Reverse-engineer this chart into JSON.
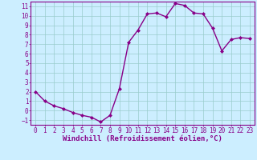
{
  "x": [
    0,
    1,
    2,
    3,
    4,
    5,
    6,
    7,
    8,
    9,
    10,
    11,
    12,
    13,
    14,
    15,
    16,
    17,
    18,
    19,
    20,
    21,
    22,
    23
  ],
  "y": [
    2,
    1,
    0.5,
    0.2,
    -0.2,
    -0.5,
    -0.7,
    -1.2,
    -0.5,
    2.3,
    7.2,
    8.5,
    10.2,
    10.3,
    9.9,
    11.3,
    11.1,
    10.3,
    10.2,
    8.7,
    6.3,
    7.5,
    7.7,
    7.6
  ],
  "line_color": "#880088",
  "marker": "D",
  "marker_size": 2,
  "bg_color": "#cceeff",
  "grid_color": "#99cccc",
  "xlabel": "Windchill (Refroidissement éolien,°C)",
  "xlabel_color": "#880088",
  "xlim": [
    -0.5,
    23.5
  ],
  "ylim": [
    -1.5,
    11.5
  ],
  "yticks": [
    -1,
    0,
    1,
    2,
    3,
    4,
    5,
    6,
    7,
    8,
    9,
    10,
    11
  ],
  "xticks": [
    0,
    1,
    2,
    3,
    4,
    5,
    6,
    7,
    8,
    9,
    10,
    11,
    12,
    13,
    14,
    15,
    16,
    17,
    18,
    19,
    20,
    21,
    22,
    23
  ],
  "tick_fontsize": 5.5,
  "xlabel_fontsize": 6.5,
  "line_width": 1.0
}
